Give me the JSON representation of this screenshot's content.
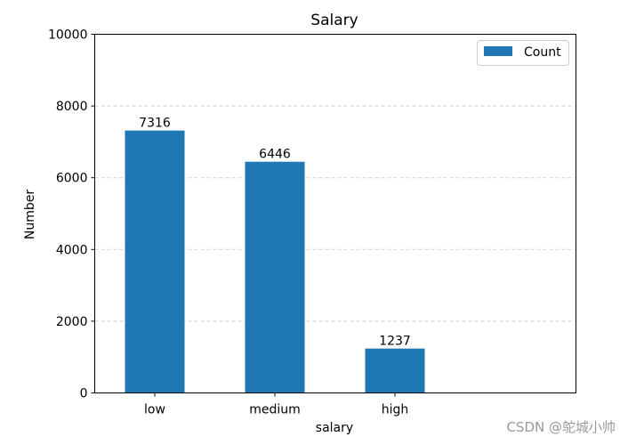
{
  "chart_data": {
    "type": "bar",
    "title": "Salary",
    "xlabel": "salary",
    "ylabel": "Number",
    "categories": [
      "low",
      "medium",
      "high"
    ],
    "series": [
      {
        "name": "Count",
        "values": [
          7316,
          6446,
          1237
        ]
      }
    ],
    "data_labels": [
      "7316",
      "6446",
      "1237"
    ],
    "ylim": [
      0,
      10000
    ],
    "yticks": [
      0,
      2000,
      4000,
      6000,
      8000,
      10000
    ],
    "grid": "y-dashed",
    "legend_position": "top-right",
    "bar_color": "#1f77b4"
  },
  "watermark": "CSDN @鸵城小帅"
}
